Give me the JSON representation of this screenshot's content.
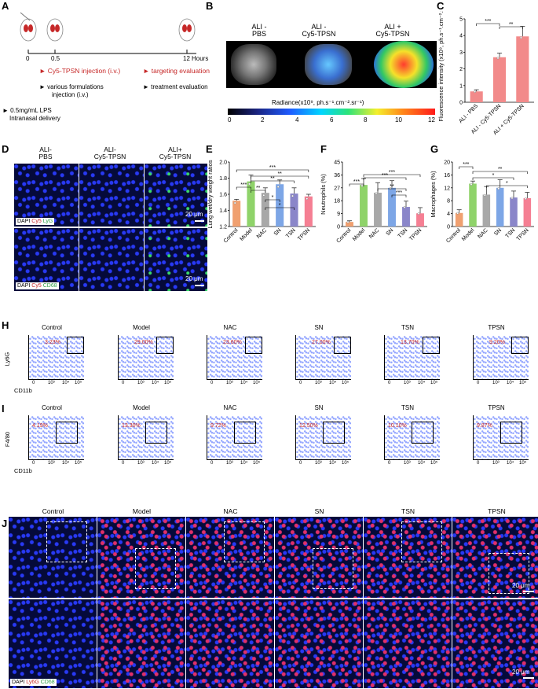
{
  "panels": {
    "A": "A",
    "B": "B",
    "C": "C",
    "D": "D",
    "E": "E",
    "F": "F",
    "G": "G",
    "H": "H",
    "I": "I",
    "J": "J"
  },
  "timeline": {
    "t0": "0",
    "t05": "0.5",
    "t12": "12",
    "hours": "Hours",
    "cy5": "Cy5-TPSN injection (i.v.)",
    "formulations1": "various formulations",
    "formulations2": "injection (i.v.)",
    "lps1": "0.5mg/mL LPS",
    "lps2": "Intranasal delivery",
    "target": "targeting evaluation",
    "treat": "treatment evaluation"
  },
  "imaging": {
    "groups": [
      [
        "ALI -",
        "PBS"
      ],
      [
        "ALI -",
        "Cy5-TPSN"
      ],
      [
        "ALI +",
        "Cy5-TPSN"
      ]
    ],
    "radiance": "Radiance(x10⁹, ph.s⁻¹.cm⁻².sr⁻¹)",
    "ticks": [
      "0",
      "2",
      "4",
      "6",
      "8",
      "10",
      "12"
    ]
  },
  "colors": {
    "red_bar": "#f28a8a",
    "green_bar": "#8fd36a",
    "gray_bar": "#a8a8a8",
    "blue_bar": "#7da6e6",
    "purple_bar": "#8a86c9",
    "pink_bar": "#f57f93",
    "control_bar": "#f0a070"
  },
  "chart_data": [
    {
      "type": "bar",
      "panel": "C",
      "categories": [
        "ALI - PBS",
        "ALI - Cy5-TPSN",
        "ALI + Cy5-TPSN"
      ],
      "values": [
        0.65,
        2.7,
        3.95
      ],
      "errors": [
        0.1,
        0.25,
        0.6
      ],
      "ylabel": "Fluorescence intensity (x10⁹, ph.s⁻¹.cm⁻².sr⁻¹)",
      "ylim": [
        0,
        5
      ],
      "yticks": [
        "0",
        "1",
        "2",
        "3",
        "4",
        "5"
      ],
      "sig": [
        "***",
        "**"
      ]
    },
    {
      "type": "bar",
      "panel": "E",
      "categories": [
        "Control",
        "Model",
        "NAC",
        "SN",
        "TSN",
        "TPSN"
      ],
      "values": [
        1.56,
        1.83,
        1.67,
        1.79,
        1.66,
        1.62
      ],
      "errors": [
        0.02,
        0.09,
        0.07,
        0.06,
        0.08,
        0.03
      ],
      "ylabel": "Lung wet/dry weight ratios",
      "ylim": [
        1.2,
        2.1
      ],
      "yticks": [
        "1.2",
        "1.4",
        "1.6",
        "1.8",
        "2.0"
      ],
      "sig": [
        "***",
        "**",
        "*",
        "*",
        "***",
        "**",
        "**"
      ]
    },
    {
      "type": "bar",
      "panel": "F",
      "categories": [
        "Control",
        "Model",
        "NAC",
        "SN",
        "TSN",
        "TPSN"
      ],
      "values": [
        3.2,
        29.0,
        23.6,
        27.0,
        13.7,
        9.2
      ],
      "errors": [
        0.8,
        4.5,
        7,
        5,
        4,
        4
      ],
      "ylabel": "Neutrophils (%)",
      "ylim": [
        0,
        45
      ],
      "yticks": [
        "0",
        "9",
        "18",
        "27",
        "36",
        "45"
      ],
      "sig": [
        "***",
        "***",
        "***",
        "**",
        "***"
      ]
    },
    {
      "type": "bar",
      "panel": "G",
      "categories": [
        "Control",
        "Model",
        "NAC",
        "SN",
        "TSN",
        "TPSN"
      ],
      "values": [
        4.2,
        13.3,
        9.9,
        12.0,
        9.0,
        8.8
      ],
      "errors": [
        1,
        0.8,
        2.5,
        2.5,
        2,
        1.8
      ],
      "ylabel": "Macrophages (%)",
      "ylim": [
        0,
        20
      ],
      "yticks": [
        "0",
        "4",
        "8",
        "12",
        "16",
        "20"
      ],
      "sig": [
        "***",
        "**",
        "*",
        "*"
      ]
    }
  ],
  "D": {
    "cols": [
      [
        "ALI-",
        "PBS"
      ],
      [
        "ALI-",
        "Cy5-TPSN"
      ],
      [
        "ALI+",
        "Cy5-TPSN"
      ]
    ],
    "legend1": [
      "DAPI",
      "Cy5",
      "LyG"
    ],
    "legend2": [
      "DAPI",
      "Cy5",
      "CD68"
    ],
    "scale": "20 μm"
  },
  "H": {
    "groups": [
      "Control",
      "Model",
      "NAC",
      "SN",
      "TSN",
      "TPSN"
    ],
    "pcts": [
      "3.23%",
      "29.00%",
      "23.60%",
      "27.00%",
      "13.70%",
      "9.20%"
    ],
    "ylabel": "Ly6G",
    "xlabel": "CD11b",
    "ticks": [
      "0",
      "10³",
      "10⁴",
      "10⁵"
    ]
  },
  "I": {
    "groups": [
      "Control",
      "Model",
      "NAC",
      "SN",
      "TSN",
      "TPSN"
    ],
    "pcts": [
      "4.19%",
      "13.30%",
      "9.72%",
      "12.50%",
      "10.10%",
      "9.87%"
    ],
    "ylabel": "F4/80",
    "xlabel": "CD11b",
    "ticks": [
      "0",
      "10³",
      "10⁴",
      "10⁵"
    ]
  },
  "J": {
    "groups": [
      "Control",
      "Model",
      "NAC",
      "SN",
      "TSN",
      "TPSN"
    ],
    "legend": [
      "DAPI",
      "Ly6G",
      "CD68"
    ],
    "scale": "20 μm"
  }
}
